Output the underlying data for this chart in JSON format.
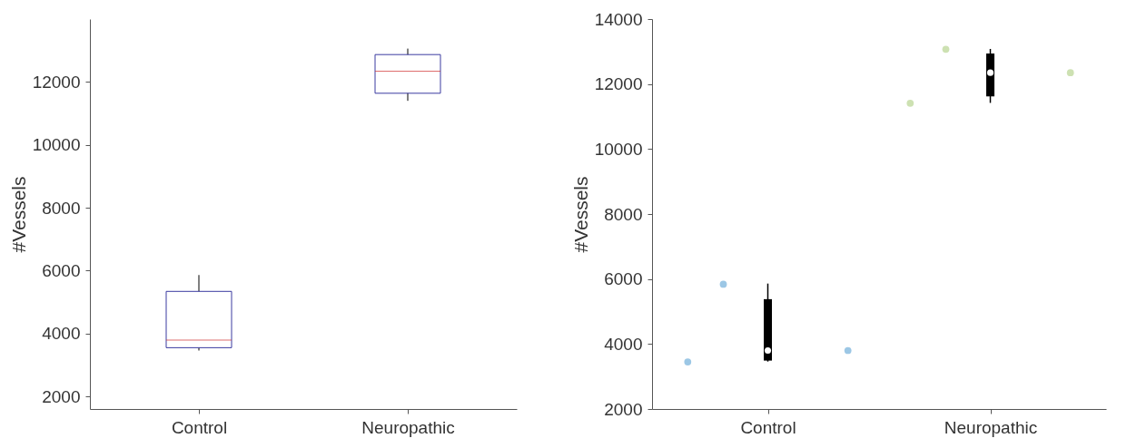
{
  "chart_data": [
    {
      "type": "box",
      "ylabel": "#Vessels",
      "categories": [
        "Control",
        "Neuropathic"
      ],
      "ylim": [
        1600,
        14000
      ],
      "yticks": [
        2000,
        4000,
        6000,
        8000,
        10000,
        12000
      ],
      "grid": false,
      "color": "#3a3aa0",
      "boxes": [
        {
          "low": 3460,
          "q1": 3550,
          "median": 3790,
          "q3": 5340,
          "high": 5860
        },
        {
          "low": 11400,
          "q1": 11640,
          "median": 12340,
          "q3": 12870,
          "high": 13060
        }
      ]
    },
    {
      "type": "box",
      "ylabel": "#Vessels",
      "categories": [
        "Control",
        "Neuropathic"
      ],
      "ylim": [
        2000,
        14000
      ],
      "yticks": [
        2000,
        4000,
        6000,
        8000,
        10000,
        12000,
        14000
      ],
      "grid": false,
      "series": [
        {
          "type": "box",
          "color": "#000000",
          "boxes": [
            {
              "low": 3460,
              "q1": 3490,
              "median": 3800,
              "q3": 5380,
              "high": 5860
            },
            {
              "low": 11420,
              "q1": 11620,
              "median": 12350,
              "q3": 12940,
              "high": 13080
            }
          ]
        },
        {
          "type": "scatter",
          "x": [
            "Control",
            "Control",
            "Control",
            "Neuropathic",
            "Neuropathic",
            "Neuropathic"
          ],
          "values": [
            5840,
            3450,
            3800,
            13070,
            11410,
            12350
          ],
          "colors": [
            "#8bbde0",
            "#8bbde0",
            "#8bbde0",
            "#c4dca4",
            "#c4dca4",
            "#c4dca4"
          ]
        }
      ]
    }
  ]
}
